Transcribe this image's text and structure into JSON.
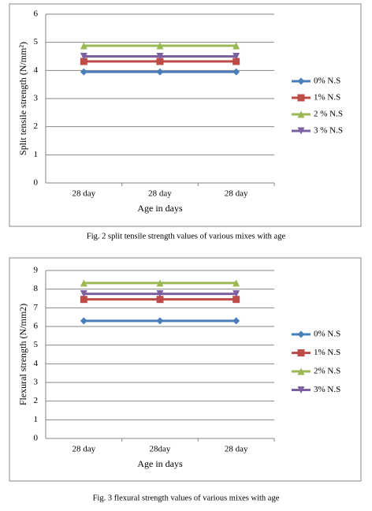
{
  "chart_data": [
    {
      "type": "line",
      "caption": "Fig. 2 split tensile strength values of various mixes with age",
      "x_label": "Age in days",
      "y_label": "Split tensile strength (N/mm²)",
      "categories": [
        "28 day",
        "28 day",
        "28 day"
      ],
      "series": [
        {
          "name": "0% N.S",
          "color": "#4a7ebb",
          "marker": "diamond",
          "values": [
            3.95,
            3.95,
            3.95
          ]
        },
        {
          "name": "1% N.S",
          "color": "#be4b48",
          "marker": "square",
          "values": [
            4.32,
            4.32,
            4.32
          ]
        },
        {
          "name": "2 % N.S",
          "color": "#98b954",
          "marker": "triangle",
          "values": [
            4.88,
            4.88,
            4.88
          ]
        },
        {
          "name": "3 % N.S",
          "color": "#7d60a0",
          "marker": "triangle-down",
          "values": [
            4.5,
            4.5,
            4.5
          ]
        }
      ],
      "ylim": [
        0,
        6
      ],
      "yticks": [
        0,
        1,
        2,
        3,
        4,
        5,
        6
      ],
      "grid": true,
      "legend": "right"
    },
    {
      "type": "line",
      "caption": "Fig. 3 flexural strength values of various mixes with age",
      "x_label": "Age in days",
      "y_label": "Flexural strength (N/mm2)",
      "categories": [
        "28 day",
        "28day",
        "28 day"
      ],
      "series": [
        {
          "name": "0% N.S",
          "color": "#4a7ebb",
          "marker": "diamond",
          "values": [
            6.3,
            6.3,
            6.3
          ]
        },
        {
          "name": "1% N.S",
          "color": "#be4b48",
          "marker": "square",
          "values": [
            7.45,
            7.45,
            7.45
          ]
        },
        {
          "name": "2% N.S",
          "color": "#98b954",
          "marker": "triangle",
          "values": [
            8.33,
            8.33,
            8.33
          ]
        },
        {
          "name": "3% N.S",
          "color": "#7d60a0",
          "marker": "triangle-down",
          "values": [
            7.75,
            7.75,
            7.75
          ]
        }
      ],
      "ylim": [
        0,
        9
      ],
      "yticks": [
        0,
        1,
        2,
        3,
        4,
        5,
        6,
        7,
        8,
        9
      ],
      "grid": true,
      "legend": "right"
    }
  ]
}
